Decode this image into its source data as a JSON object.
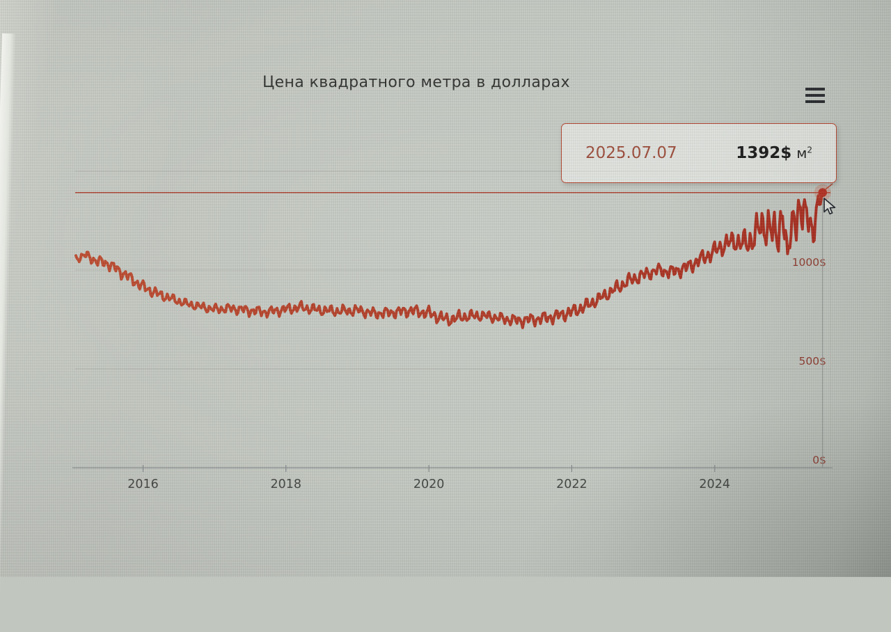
{
  "chart": {
    "title": "Цена квадратного метра в долларах",
    "context_menu": {
      "icon": "hamburger-icon"
    },
    "tooltip": {
      "date": "2025.07.07",
      "value": "1392$",
      "unit_base": "м",
      "unit_exponent": "2"
    }
  },
  "colors": {
    "background": "#c1c6bf",
    "line_start": "#bc4a2e",
    "line_end": "#a52a1c",
    "marker": "#b02c1e",
    "halo": "rgba(190,70,48,0.25)",
    "plotline": "#a83422",
    "grid": "#b2b5ae",
    "axis": "#83878a",
    "crosshair": "#8b8f8c",
    "y_label": "#8a372b",
    "x_label": "#3e413e",
    "title": "#2d2f2d",
    "tooltip_border": "#b5442f",
    "tooltip_date": "#9c4a38",
    "tooltip_value": "#161616"
  },
  "chart_data": {
    "type": "line",
    "title": "Цена квадратного метра в долларах",
    "xlabel": "",
    "ylabel": "",
    "legend": "none",
    "grid": "horizontal-only",
    "y_axis_side": "right",
    "xlim": [
      2015.05,
      2025.62
    ],
    "ylim": [
      0,
      1550
    ],
    "x_ticks": [
      2016,
      2018,
      2020,
      2022,
      2024
    ],
    "x_tick_labels": [
      "2016",
      "2018",
      "2020",
      "2022",
      "2024"
    ],
    "y_gridlines": [
      0,
      500,
      1000,
      1500
    ],
    "y_tick_labels": [
      {
        "value": 0,
        "text": "0$"
      },
      {
        "value": 500,
        "text": "500$"
      },
      {
        "value": 1000,
        "text": "1000$"
      }
    ],
    "plotline_value": 1392,
    "hover_point": {
      "date": "2025.07.07",
      "value": 1392,
      "unit": "$/м2"
    },
    "series": [
      {
        "name": "Цена квадратного метра в долларах",
        "point_format": [
          "year_fraction",
          "usd_per_m2",
          "volatility_half_band_usd"
        ],
        "points": [
          [
            2015.06,
            1060,
            25
          ],
          [
            2015.2,
            1075,
            30
          ],
          [
            2015.35,
            1045,
            35
          ],
          [
            2015.5,
            1035,
            35
          ],
          [
            2015.65,
            1000,
            38
          ],
          [
            2015.8,
            965,
            38
          ],
          [
            2016.0,
            915,
            38
          ],
          [
            2016.2,
            880,
            34
          ],
          [
            2016.4,
            855,
            30
          ],
          [
            2016.6,
            830,
            28
          ],
          [
            2016.8,
            815,
            28
          ],
          [
            2017.0,
            802,
            30
          ],
          [
            2017.25,
            806,
            32
          ],
          [
            2017.5,
            795,
            34
          ],
          [
            2017.75,
            788,
            32
          ],
          [
            2018.0,
            802,
            34
          ],
          [
            2018.2,
            812,
            34
          ],
          [
            2018.45,
            798,
            34
          ],
          [
            2018.7,
            792,
            34
          ],
          [
            2019.0,
            796,
            34
          ],
          [
            2019.25,
            780,
            34
          ],
          [
            2019.5,
            786,
            36
          ],
          [
            2019.75,
            795,
            38
          ],
          [
            2020.0,
            782,
            40
          ],
          [
            2020.25,
            748,
            42
          ],
          [
            2020.5,
            765,
            38
          ],
          [
            2020.75,
            770,
            34
          ],
          [
            2021.0,
            756,
            34
          ],
          [
            2021.25,
            744,
            38
          ],
          [
            2021.5,
            752,
            40
          ],
          [
            2021.75,
            764,
            42
          ],
          [
            2022.0,
            788,
            44
          ],
          [
            2022.2,
            818,
            44
          ],
          [
            2022.4,
            858,
            40
          ],
          [
            2022.6,
            902,
            44
          ],
          [
            2022.8,
            946,
            44
          ],
          [
            2023.0,
            974,
            44
          ],
          [
            2023.2,
            1000,
            40
          ],
          [
            2023.4,
            990,
            44
          ],
          [
            2023.6,
            1012,
            46
          ],
          [
            2023.8,
            1054,
            50
          ],
          [
            2024.0,
            1096,
            56
          ],
          [
            2024.15,
            1132,
            62
          ],
          [
            2024.3,
            1146,
            70
          ],
          [
            2024.45,
            1130,
            85
          ],
          [
            2024.6,
            1195,
            115
          ],
          [
            2024.72,
            1240,
            140
          ],
          [
            2024.85,
            1160,
            150
          ],
          [
            2024.95,
            1290,
            150
          ],
          [
            2025.02,
            1060,
            50
          ],
          [
            2025.1,
            1300,
            140
          ],
          [
            2025.2,
            1240,
            170
          ],
          [
            2025.3,
            1330,
            120
          ],
          [
            2025.38,
            1150,
            90
          ],
          [
            2025.45,
            1340,
            80
          ],
          [
            2025.51,
            1392,
            0
          ]
        ]
      }
    ]
  }
}
